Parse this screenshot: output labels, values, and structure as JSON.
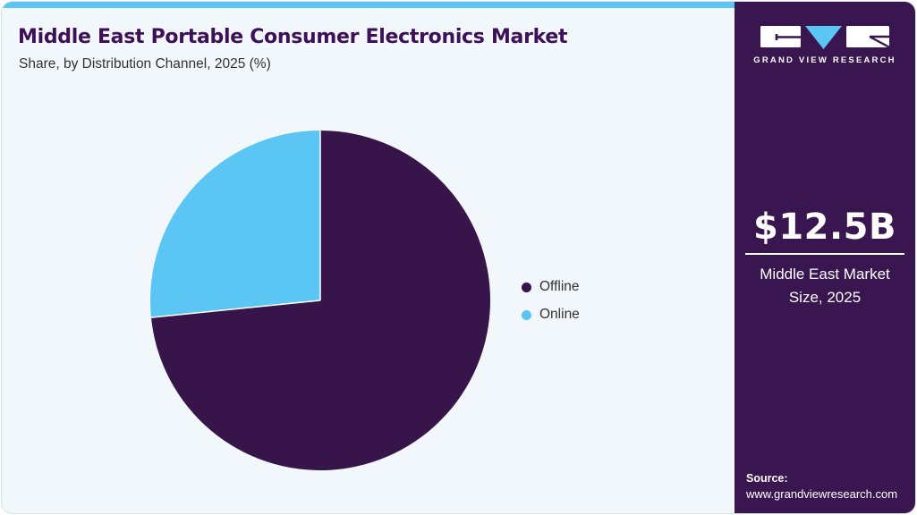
{
  "header": {
    "title": "Middle East Portable Consumer Electronics Market",
    "subtitle": "Share, by Distribution Channel, 2025 (%)"
  },
  "chart_data": {
    "type": "pie",
    "title": "Middle East Portable Consumer Electronics Market Share, by Distribution Channel, 2025 (%)",
    "categories": [
      "Offline",
      "Online"
    ],
    "values": [
      73.4,
      26.6
    ],
    "unit": "percent",
    "colors": [
      "#371449",
      "#5BC5F3"
    ],
    "start_angle_deg": 0,
    "direction": "clockwise",
    "legend_position": "right",
    "data_labels_shown": false
  },
  "sidebar": {
    "brand_name": "GRAND VIEW RESEARCH",
    "stat_value": "$12.5B",
    "stat_label": "Middle East Market Size, 2025",
    "source_label": "Source:",
    "source_url": "www.grandviewresearch.com"
  },
  "theme": {
    "accent_blue": "#5BC5F3",
    "brand_purple": "#3A1650",
    "pie_dark": "#371449",
    "title_color": "#3D1058",
    "panel_bg": "#F1F7FB",
    "slice_separator": "#FFFFFF"
  }
}
